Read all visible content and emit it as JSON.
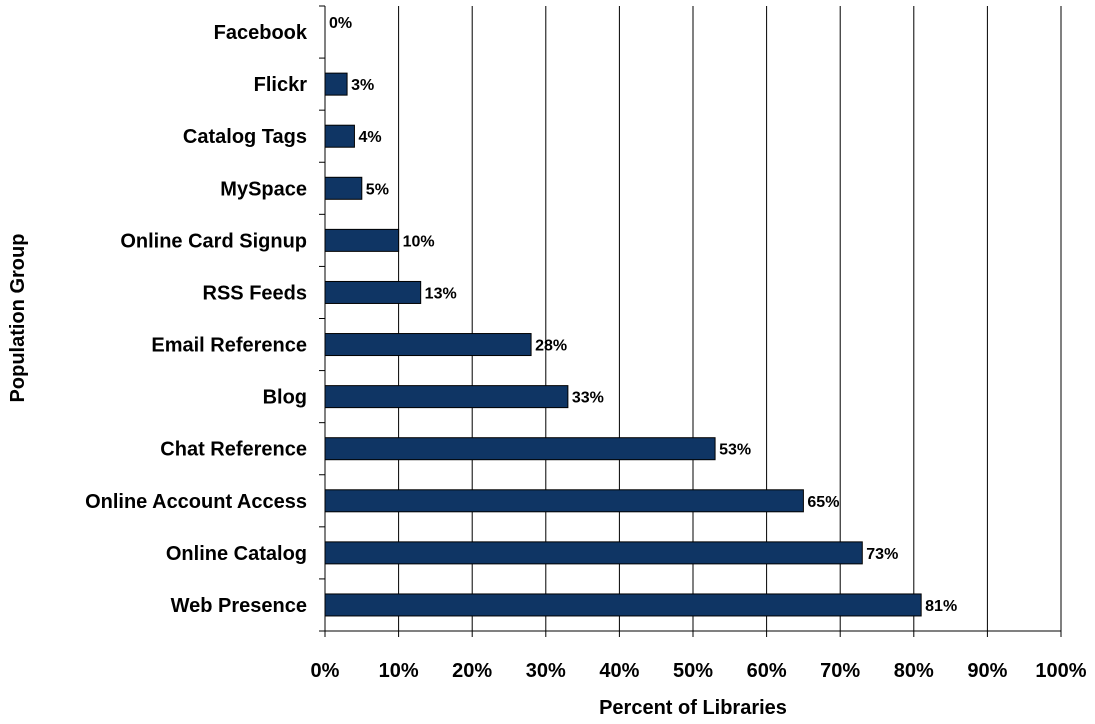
{
  "chart_data": {
    "type": "bar",
    "orientation": "horizontal",
    "title": "",
    "xlabel": "Percent of Libraries",
    "ylabel": "Population Group",
    "categories": [
      "Facebook",
      "Flickr",
      "Catalog Tags",
      "MySpace",
      "Online Card Signup",
      "RSS Feeds",
      "Email Reference",
      "Blog",
      "Chat Reference",
      "Online Account Access",
      "Online Catalog",
      "Web Presence"
    ],
    "values": [
      0,
      3,
      4,
      5,
      10,
      13,
      28,
      33,
      53,
      65,
      73,
      81
    ],
    "data_labels": [
      "0%",
      "3%",
      "4%",
      "5%",
      "10%",
      "13%",
      "28%",
      "33%",
      "53%",
      "65%",
      "73%",
      "81%"
    ],
    "xlim": [
      0,
      100
    ],
    "x_ticks": [
      0,
      10,
      20,
      30,
      40,
      50,
      60,
      70,
      80,
      90,
      100
    ],
    "x_tick_labels": [
      "0%",
      "10%",
      "20%",
      "30%",
      "40%",
      "50%",
      "60%",
      "70%",
      "80%",
      "90%",
      "100%"
    ],
    "grid": "vertical",
    "legend": "none",
    "bar_color": "#0f3564",
    "bar_edge_color": "#000000",
    "grid_color": "#000000"
  }
}
